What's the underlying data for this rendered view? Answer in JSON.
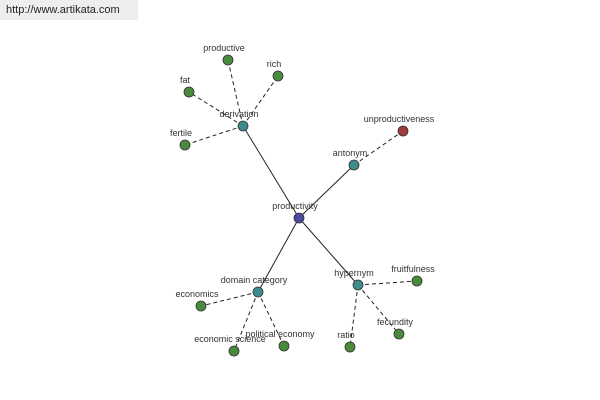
{
  "header": {
    "url": "http://www.artikata.com"
  },
  "nodes": [
    {
      "label": "productivity"
    },
    {
      "label": "derivation"
    },
    {
      "label": "antonym"
    },
    {
      "label": "domain category"
    },
    {
      "label": "hypernym"
    },
    {
      "label": "productive"
    },
    {
      "label": "rich"
    },
    {
      "label": "fat"
    },
    {
      "label": "fertile"
    },
    {
      "label": "unproductiveness"
    },
    {
      "label": "economics"
    },
    {
      "label": "economic science"
    },
    {
      "label": "political economy"
    },
    {
      "label": "fruitfulness"
    },
    {
      "label": "fecundity"
    },
    {
      "label": "ratio"
    }
  ]
}
